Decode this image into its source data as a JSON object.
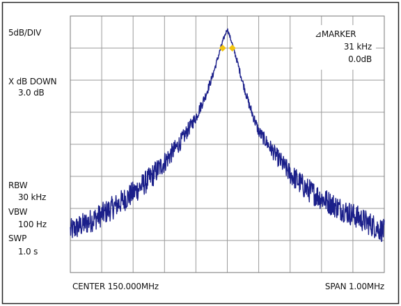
{
  "chart_data": {
    "type": "line",
    "scale_label": "5dB/DIV",
    "x_dB_down": {
      "label": "X dB DOWN",
      "value": "3.0 dB"
    },
    "marker": {
      "title": "MARKER",
      "delta": "31 kHz",
      "level": "0.0dB"
    },
    "settings": {
      "rbw_label": "RBW",
      "rbw_value": "30 kHz",
      "vbw_label": "VBW",
      "vbw_value": "100 Hz",
      "swp_label": "SWP",
      "swp_value": "1.0 s"
    },
    "x_axis": {
      "center_label": "CENTER 150.000MHz",
      "span_label": "SPAN 1.00MHz",
      "center_mhz": 150.0,
      "span_mhz": 1.0,
      "range_mhz": [
        149.5,
        150.5
      ],
      "divisions": 10
    },
    "y_axis": {
      "db_per_div": 5,
      "divisions": 8,
      "range_db_rel_top": [
        -40,
        0
      ]
    },
    "series": [
      {
        "x_mhz": [
          149.5,
          149.55,
          149.6,
          149.65,
          149.7,
          149.75,
          149.8,
          149.85,
          149.9,
          149.93,
          149.95,
          149.97,
          149.985,
          150.0,
          150.015,
          150.03,
          150.05,
          150.07,
          150.1,
          150.15,
          150.2,
          150.25,
          150.3,
          150.35,
          150.4,
          150.45,
          150.5
        ],
        "level_db": [
          -33.5,
          -32.3,
          -31.0,
          -29.4,
          -27.6,
          -25.5,
          -22.8,
          -19.7,
          -15.8,
          -12.5,
          -9.8,
          -6.5,
          -4.0,
          -2.0,
          -4.2,
          -6.8,
          -10.5,
          -13.9,
          -18.0,
          -21.4,
          -24.6,
          -26.9,
          -28.4,
          -29.8,
          -31.0,
          -32.3,
          -33.6
        ]
      }
    ],
    "marker_points": [
      {
        "x_mhz": 149.985,
        "level_db": -5.0
      },
      {
        "x_mhz": 150.016,
        "level_db": -5.0
      }
    ],
    "grid": true,
    "colors": {
      "trace": "#1b1f8a",
      "marker": "#f2c40f",
      "grid": "#9a9a9a",
      "frame": "#222222"
    }
  }
}
